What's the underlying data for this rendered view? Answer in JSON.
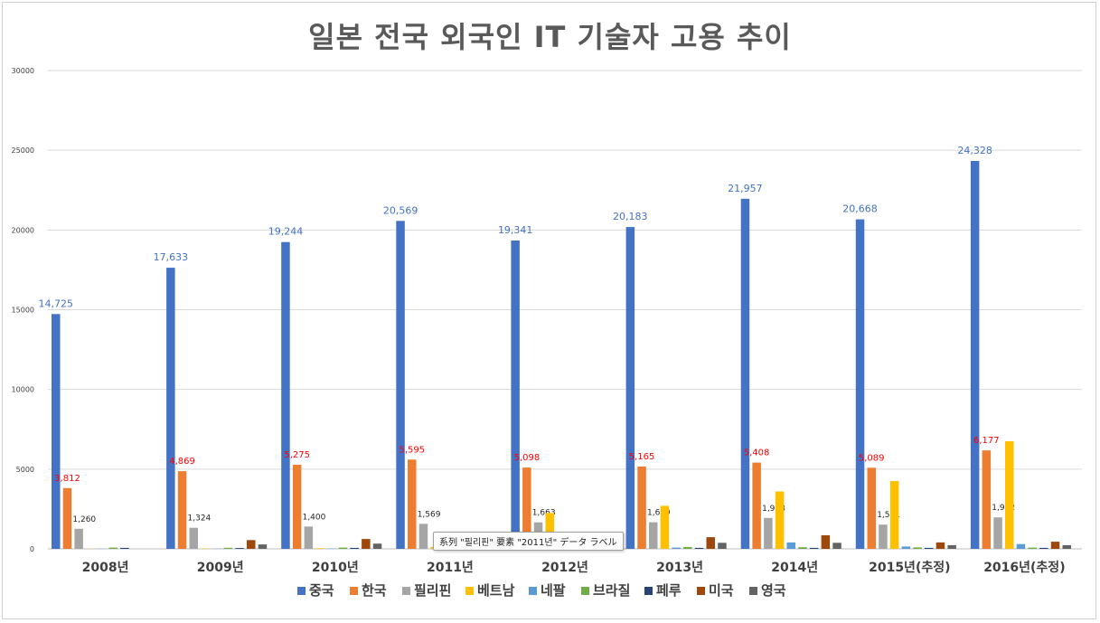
{
  "chart_data": {
    "type": "bar",
    "title": "일본 전국 외국인 IT 기술자 고용 추이",
    "categories": [
      "2008년",
      "2009년",
      "2010년",
      "2011년",
      "2012년",
      "2013년",
      "2014년",
      "2015년(추정)",
      "2016년(추정)"
    ],
    "ylim": [
      0,
      30000
    ],
    "yticks": [
      0,
      5000,
      10000,
      15000,
      20000,
      25000,
      30000
    ],
    "grid": true,
    "legend_position": "bottom",
    "series": [
      {
        "name": "중국",
        "color": "#4472C4",
        "values": [
          14725,
          17633,
          19244,
          20569,
          19341,
          20183,
          21957,
          20668,
          24328
        ],
        "labels": [
          "14,725",
          "17,633",
          "19,244",
          "20,569",
          "19,341",
          "20,183",
          "21,957",
          "20,668",
          "24,328"
        ],
        "label_color": "#4472C4"
      },
      {
        "name": "한국",
        "color": "#ED7D31",
        "values": [
          3812,
          4869,
          5275,
          5595,
          5098,
          5165,
          5408,
          5089,
          6177
        ],
        "labels": [
          "3,812",
          "4,869",
          "5,275",
          "5,595",
          "5,098",
          "5,165",
          "5,408",
          "5,089",
          "6,177"
        ],
        "label_color": "#FF0000"
      },
      {
        "name": "필리핀",
        "color": "#A5A5A5",
        "values": [
          1260,
          1324,
          1400,
          1569,
          1663,
          1669,
          1938,
          1521,
          1972
        ],
        "labels": [
          "1,260",
          "1,324",
          "1,400",
          "1,569",
          "1,663",
          "1,669",
          "1,938",
          "1,521",
          "1,972"
        ],
        "label_color": "#262626"
      },
      {
        "name": "베트남",
        "color": "#FFC000",
        "values": [
          10,
          20,
          40,
          120,
          2250,
          2700,
          3600,
          4250,
          6750
        ]
      },
      {
        "name": "네팔",
        "color": "#5B9BD5",
        "values": [
          10,
          10,
          20,
          30,
          60,
          80,
          400,
          150,
          300
        ]
      },
      {
        "name": "브라질",
        "color": "#70AD47",
        "values": [
          80,
          70,
          80,
          90,
          90,
          120,
          100,
          90,
          80
        ]
      },
      {
        "name": "페루",
        "color": "#264478",
        "values": [
          60,
          50,
          60,
          60,
          60,
          60,
          60,
          60,
          60
        ]
      },
      {
        "name": "미국",
        "color": "#9E480E",
        "values": [
          0,
          550,
          620,
          620,
          650,
          730,
          850,
          400,
          450
        ]
      },
      {
        "name": "영국",
        "color": "#636363",
        "values": [
          0,
          280,
          330,
          330,
          350,
          380,
          380,
          230,
          230
        ]
      }
    ]
  },
  "tooltip": {
    "text": "系列 \"필리핀\" 要素 \"2011년\" データ ラベル"
  }
}
